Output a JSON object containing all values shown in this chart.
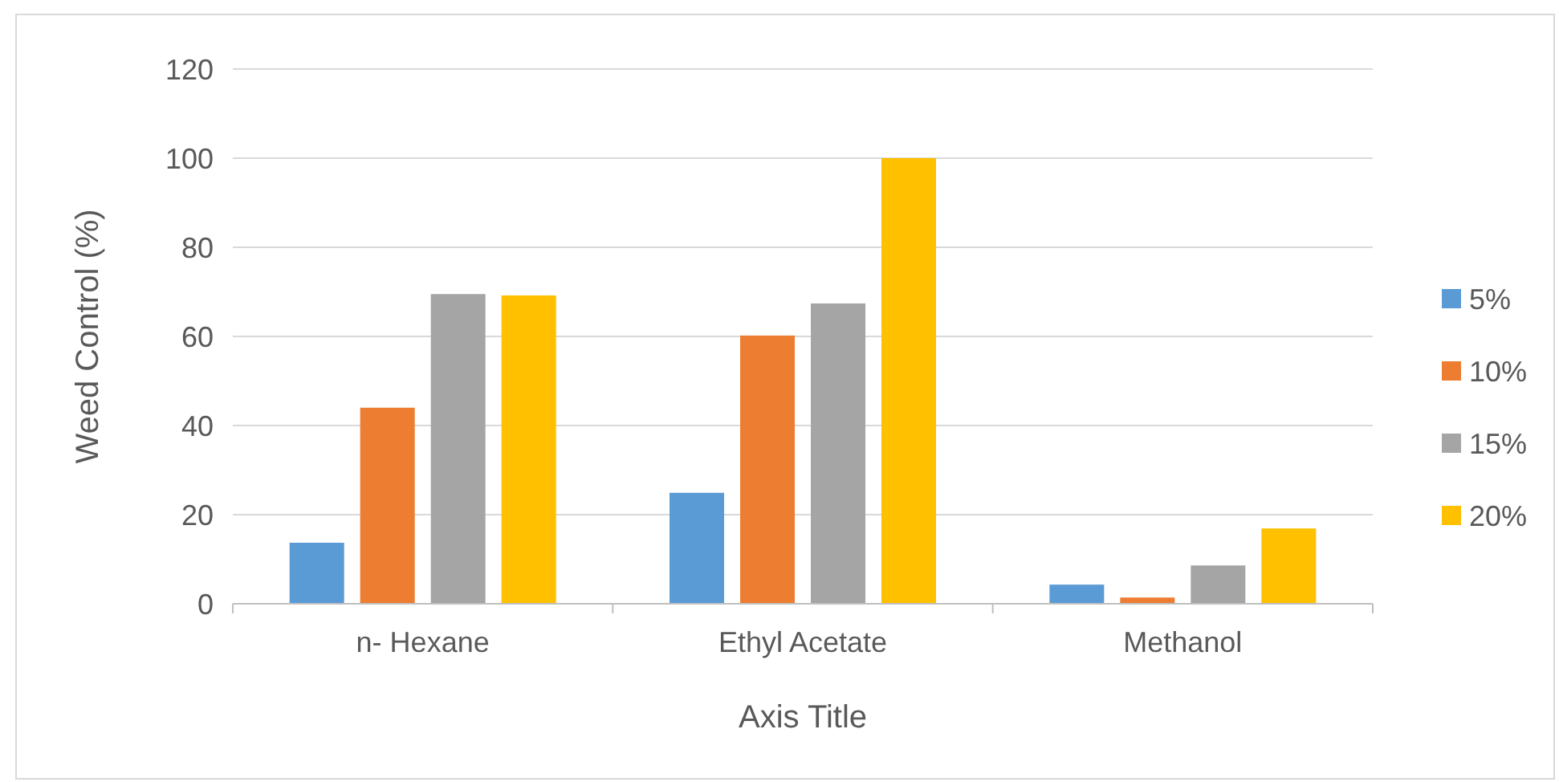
{
  "chart_data": {
    "type": "bar",
    "xlabel": "Axis Title",
    "ylabel": "Weed Control (%)",
    "categories": [
      "n- Hexane",
      "Ethyl Acetate",
      "Methanol"
    ],
    "series": [
      {
        "name": "5%",
        "color": "#5b9bd5",
        "values": [
          13.7,
          24.9,
          4.3
        ]
      },
      {
        "name": "10%",
        "color": "#ed7d31",
        "values": [
          44,
          60.2,
          1.4
        ]
      },
      {
        "name": "15%",
        "color": "#a5a5a5",
        "values": [
          69.5,
          67.4,
          8.6
        ]
      },
      {
        "name": "20%",
        "color": "#ffc000",
        "values": [
          69.2,
          100,
          16.9
        ]
      }
    ],
    "ylim": [
      0,
      120
    ],
    "yticks": [
      0,
      20,
      40,
      60,
      80,
      100,
      120
    ],
    "grid": "y",
    "legend": "right"
  }
}
